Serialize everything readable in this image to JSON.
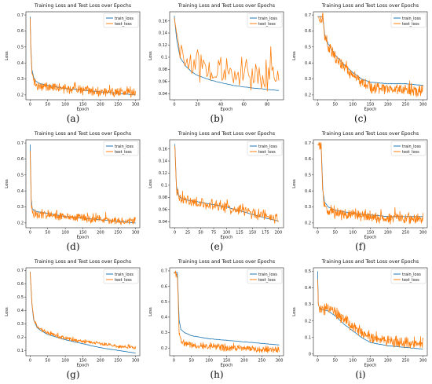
{
  "colors": {
    "train": "#1f77b4",
    "test": "#ff7f0e"
  },
  "chart_data": [
    {
      "label": "(a)",
      "type": "line",
      "title": "Training Loss and Test Loss over Epochs",
      "xlabel": "Epoch",
      "ylabel": "Loss",
      "xlim": [
        -12,
        312
      ],
      "ylim": [
        0.17,
        0.72
      ],
      "xticks": [
        0,
        50,
        100,
        150,
        200,
        250,
        300
      ],
      "yticks": [
        0.2,
        0.3,
        0.4,
        0.5,
        0.6,
        0.7
      ],
      "legend": "top-right",
      "series": [
        {
          "name": "train_loss",
          "x": [
            0,
            2,
            5,
            10,
            15,
            20,
            30,
            50,
            100,
            150,
            200,
            250,
            300
          ],
          "y": [
            0.69,
            0.5,
            0.36,
            0.31,
            0.29,
            0.28,
            0.27,
            0.26,
            0.24,
            0.23,
            0.22,
            0.21,
            0.2
          ]
        },
        {
          "name": "test_loss",
          "x": [
            0,
            2,
            5,
            10,
            15,
            20,
            30,
            50,
            100,
            150,
            200,
            250,
            300
          ],
          "y": [
            0.68,
            0.48,
            0.34,
            0.29,
            0.27,
            0.26,
            0.25,
            0.25,
            0.24,
            0.23,
            0.22,
            0.22,
            0.21
          ],
          "noise": 0.025
        }
      ]
    },
    {
      "label": "(b)",
      "type": "line",
      "title": "Training Loss and Test Loss over Epochs",
      "xlabel": "Epoch",
      "ylabel": "Loss",
      "xlim": [
        -4,
        94
      ],
      "ylim": [
        0.03,
        0.175
      ],
      "xticks": [
        0,
        20,
        40,
        60,
        80
      ],
      "yticks": [
        0.04,
        0.06,
        0.08,
        0.1,
        0.12,
        0.14,
        0.16
      ],
      "legend": "top-right",
      "series": [
        {
          "name": "train_loss",
          "x": [
            0,
            2,
            5,
            10,
            15,
            20,
            30,
            40,
            50,
            60,
            70,
            80,
            90
          ],
          "y": [
            0.168,
            0.13,
            0.1,
            0.085,
            0.076,
            0.07,
            0.063,
            0.058,
            0.054,
            0.051,
            0.049,
            0.047,
            0.045
          ]
        },
        {
          "name": "test_loss",
          "x": [
            0,
            2,
            5,
            10,
            15,
            20,
            30,
            40,
            50,
            60,
            70,
            80,
            90
          ],
          "y": [
            0.165,
            0.14,
            0.11,
            0.095,
            0.09,
            0.085,
            0.08,
            0.077,
            0.075,
            0.073,
            0.072,
            0.07,
            0.068
          ],
          "noise": 0.02
        }
      ]
    },
    {
      "label": "(c)",
      "type": "line",
      "title": "Training Loss and Test Loss over Epochs",
      "xlabel": "Epoch",
      "ylabel": "Loss",
      "xlim": [
        -12,
        312
      ],
      "ylim": [
        0.17,
        0.72
      ],
      "xticks": [
        0,
        50,
        100,
        150,
        200,
        250,
        300
      ],
      "yticks": [
        0.2,
        0.3,
        0.4,
        0.5,
        0.6,
        0.7
      ],
      "legend": "top-right",
      "series": [
        {
          "name": "train_loss",
          "x": [
            0,
            15,
            20,
            30,
            50,
            75,
            100,
            125,
            150,
            200,
            250,
            300
          ],
          "y": [
            0.69,
            0.69,
            0.58,
            0.52,
            0.45,
            0.39,
            0.34,
            0.3,
            0.28,
            0.27,
            0.27,
            0.26
          ]
        },
        {
          "name": "test_loss",
          "x": [
            0,
            15,
            20,
            30,
            50,
            75,
            100,
            125,
            150,
            200,
            250,
            300
          ],
          "y": [
            0.69,
            0.68,
            0.56,
            0.5,
            0.43,
            0.37,
            0.32,
            0.28,
            0.25,
            0.24,
            0.23,
            0.22
          ],
          "noise": 0.03
        }
      ]
    },
    {
      "label": "(d)",
      "type": "line",
      "title": "Training Loss and Test Loss over Epochs",
      "xlabel": "Epoch",
      "ylabel": "Loss",
      "xlim": [
        -12,
        312
      ],
      "ylim": [
        0.17,
        0.72
      ],
      "xticks": [
        0,
        50,
        100,
        150,
        200,
        250,
        300
      ],
      "yticks": [
        0.2,
        0.3,
        0.4,
        0.5,
        0.6,
        0.7
      ],
      "legend": "top-right",
      "series": [
        {
          "name": "train_loss",
          "x": [
            0,
            3,
            6,
            10,
            20,
            50,
            100,
            150,
            200,
            250,
            300
          ],
          "y": [
            0.69,
            0.35,
            0.29,
            0.28,
            0.27,
            0.26,
            0.24,
            0.23,
            0.22,
            0.21,
            0.2
          ]
        },
        {
          "name": "test_loss",
          "x": [
            0,
            3,
            6,
            10,
            20,
            50,
            100,
            150,
            200,
            250,
            300
          ],
          "y": [
            0.65,
            0.33,
            0.27,
            0.26,
            0.25,
            0.25,
            0.24,
            0.23,
            0.22,
            0.21,
            0.21
          ],
          "noise": 0.022
        }
      ]
    },
    {
      "label": "(e)",
      "type": "line",
      "title": "Training Loss and Test Loss over Epochs",
      "xlabel": "Epoch",
      "ylabel": "Loss",
      "xlim": [
        -10,
        210
      ],
      "ylim": [
        0.03,
        0.175
      ],
      "xticks": [
        0,
        25,
        50,
        75,
        100,
        125,
        150,
        175,
        200
      ],
      "yticks": [
        0.04,
        0.06,
        0.08,
        0.1,
        0.12,
        0.14,
        0.16
      ],
      "legend": "top-right",
      "series": [
        {
          "name": "train_loss",
          "x": [
            0,
            3,
            6,
            10,
            20,
            50,
            100,
            125,
            150,
            175,
            200
          ],
          "y": [
            0.168,
            0.1,
            0.085,
            0.08,
            0.076,
            0.072,
            0.064,
            0.058,
            0.052,
            0.046,
            0.041
          ]
        },
        {
          "name": "test_loss",
          "x": [
            0,
            3,
            6,
            10,
            20,
            50,
            100,
            125,
            150,
            175,
            200
          ],
          "y": [
            0.165,
            0.098,
            0.082,
            0.078,
            0.075,
            0.071,
            0.064,
            0.059,
            0.054,
            0.05,
            0.046
          ],
          "noise": 0.008
        }
      ]
    },
    {
      "label": "(f)",
      "type": "line",
      "title": "Training Loss and Test Loss over Epochs",
      "xlabel": "Epoch",
      "ylabel": "Loss",
      "xlim": [
        -12,
        312
      ],
      "ylim": [
        0.17,
        0.72
      ],
      "xticks": [
        0,
        50,
        100,
        150,
        200,
        250,
        300
      ],
      "yticks": [
        0.2,
        0.3,
        0.4,
        0.5,
        0.6,
        0.7
      ],
      "legend": "top-right",
      "series": [
        {
          "name": "train_loss",
          "x": [
            0,
            10,
            15,
            20,
            30,
            50,
            100,
            150,
            200,
            250,
            300
          ],
          "y": [
            0.69,
            0.69,
            0.4,
            0.33,
            0.3,
            0.28,
            0.26,
            0.25,
            0.24,
            0.24,
            0.24
          ]
        },
        {
          "name": "test_loss",
          "x": [
            0,
            10,
            15,
            20,
            30,
            50,
            100,
            150,
            200,
            250,
            300
          ],
          "y": [
            0.69,
            0.68,
            0.38,
            0.3,
            0.27,
            0.26,
            0.25,
            0.24,
            0.23,
            0.23,
            0.23
          ],
          "noise": 0.03
        }
      ]
    },
    {
      "label": "(g)",
      "type": "line",
      "title": "Training Loss and Test Loss over Epochs",
      "xlabel": "Epoch",
      "ylabel": "Loss",
      "xlim": [
        -12,
        312
      ],
      "ylim": [
        0.06,
        0.72
      ],
      "xticks": [
        0,
        50,
        100,
        150,
        200,
        250,
        300
      ],
      "yticks": [
        0.1,
        0.2,
        0.3,
        0.4,
        0.5,
        0.6,
        0.7
      ],
      "legend": "top-right",
      "series": [
        {
          "name": "train_loss",
          "x": [
            0,
            5,
            10,
            20,
            30,
            50,
            100,
            150,
            200,
            250,
            300
          ],
          "y": [
            0.69,
            0.45,
            0.33,
            0.27,
            0.25,
            0.22,
            0.18,
            0.15,
            0.12,
            0.1,
            0.08
          ]
        },
        {
          "name": "test_loss",
          "x": [
            0,
            5,
            10,
            20,
            30,
            50,
            100,
            150,
            200,
            250,
            300
          ],
          "y": [
            0.69,
            0.46,
            0.34,
            0.28,
            0.26,
            0.23,
            0.19,
            0.17,
            0.15,
            0.13,
            0.12
          ],
          "noise": 0.012
        }
      ]
    },
    {
      "label": "(h)",
      "type": "line",
      "title": "Training Loss and Test Loss over Epochs",
      "xlabel": "Epoch",
      "ylabel": "Loss",
      "xlim": [
        -12,
        312
      ],
      "ylim": [
        0.15,
        0.72
      ],
      "xticks": [
        0,
        50,
        100,
        150,
        200,
        250,
        300
      ],
      "yticks": [
        0.2,
        0.3,
        0.4,
        0.5,
        0.6,
        0.7
      ],
      "legend": "top-right",
      "series": [
        {
          "name": "train_loss",
          "x": [
            0,
            10,
            15,
            20,
            30,
            50,
            100,
            150,
            200,
            250,
            300
          ],
          "y": [
            0.69,
            0.69,
            0.38,
            0.32,
            0.3,
            0.28,
            0.26,
            0.25,
            0.24,
            0.23,
            0.22
          ]
        },
        {
          "name": "test_loss",
          "x": [
            0,
            10,
            15,
            20,
            30,
            50,
            100,
            150,
            200,
            250,
            300
          ],
          "y": [
            0.69,
            0.67,
            0.3,
            0.25,
            0.23,
            0.22,
            0.21,
            0.2,
            0.2,
            0.19,
            0.19
          ],
          "noise": 0.018
        }
      ]
    },
    {
      "label": "(i)",
      "type": "line",
      "title": "Training Loss and Test Loss over Epochs",
      "xlabel": "Epoch",
      "ylabel": "Loss",
      "xlim": [
        -12,
        312
      ],
      "ylim": [
        -0.01,
        0.52
      ],
      "xticks": [
        0,
        50,
        100,
        150,
        200,
        250,
        300
      ],
      "yticks": [
        0.0,
        0.1,
        0.2,
        0.3,
        0.4,
        0.5
      ],
      "legend": "top-right",
      "series": [
        {
          "name": "train_loss",
          "x": [
            0,
            2,
            5,
            10,
            30,
            50,
            75,
            100,
            125,
            150,
            200,
            250,
            300
          ],
          "y": [
            0.5,
            0.3,
            0.28,
            0.27,
            0.26,
            0.23,
            0.18,
            0.14,
            0.1,
            0.07,
            0.05,
            0.04,
            0.03
          ]
        },
        {
          "name": "test_loss",
          "x": [
            0,
            2,
            5,
            10,
            30,
            50,
            75,
            100,
            125,
            150,
            200,
            250,
            300
          ],
          "y": [
            0.45,
            0.3,
            0.28,
            0.27,
            0.27,
            0.25,
            0.21,
            0.17,
            0.13,
            0.1,
            0.08,
            0.07,
            0.06
          ],
          "noise": 0.03
        }
      ]
    }
  ]
}
